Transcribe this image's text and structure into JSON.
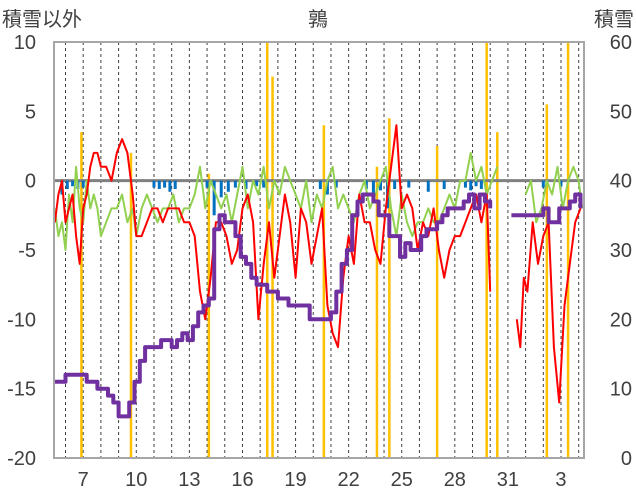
{
  "chart_data": {
    "type": "line",
    "title": "鶉",
    "ylabel_left": "積雪以外",
    "ylabel_right": "積雪",
    "x_ticks": [
      "7",
      "10",
      "13",
      "16",
      "19",
      "22",
      "25",
      "28",
      "31",
      "3"
    ],
    "x_tick_positions": [
      7,
      10,
      13,
      16,
      19,
      22,
      25,
      28,
      31,
      34
    ],
    "xlim": [
      5.35,
      35.3
    ],
    "y_left_ticks": [
      "10",
      "5",
      "0",
      "-5",
      "-10",
      "-15",
      "-20"
    ],
    "y_left_tick_values": [
      10,
      5,
      0,
      -5,
      -10,
      -15,
      -20
    ],
    "ylim_left": [
      -20,
      10
    ],
    "y_right_ticks": [
      "60",
      "50",
      "40",
      "30",
      "20",
      "10",
      "0"
    ],
    "y_right_tick_values": [
      60,
      50,
      40,
      30,
      20,
      10,
      0
    ],
    "ylim_right": [
      0,
      60
    ],
    "grid": "vertical-dashed",
    "zero_line": 0,
    "colors": {
      "temperature": "#ff0000",
      "wind": "#92d050",
      "sunshine": "#ffc000",
      "precipitation": "#0070c0",
      "snow_depth": "#7030a0",
      "zero_line": "#808080",
      "frame": "#a6a6a6",
      "grid": "#404040"
    },
    "series": [
      {
        "key": "temperature",
        "axis": "left",
        "style": "line",
        "x": [
          5.4,
          5.6,
          5.8,
          6.0,
          6.2,
          6.4,
          6.6,
          6.8,
          7.0,
          7.2,
          7.4,
          7.6,
          7.8,
          8.0,
          8.3,
          8.6,
          8.9,
          9.2,
          9.5,
          9.8,
          10.0,
          10.3,
          10.6,
          10.9,
          11.2,
          11.5,
          11.8,
          12.1,
          12.4,
          12.7,
          13.0,
          13.3,
          13.6,
          13.9,
          14.2,
          14.5,
          14.8,
          15.1,
          15.4,
          15.7,
          16.0,
          16.3,
          16.6,
          16.9,
          17.2,
          17.5,
          17.8,
          18.1,
          18.4,
          18.7,
          19.0,
          19.3,
          19.6,
          19.9,
          20.2,
          20.5,
          20.8,
          21.1,
          21.4,
          21.7,
          22.0,
          22.3,
          22.6,
          22.9,
          23.2,
          23.5,
          23.8,
          24.1,
          24.4,
          24.7,
          25.0,
          25.3,
          25.6,
          25.9,
          26.2,
          26.5,
          26.8,
          27.1,
          27.4,
          27.7,
          28.0,
          28.3,
          28.6,
          28.9,
          29.2,
          29.5,
          29.8,
          30.0,
          null,
          31.5,
          31.7,
          31.9,
          32.1,
          32.4,
          32.7,
          33.0,
          33.3,
          33.6,
          33.9,
          34.2,
          34.5,
          34.8,
          35.1
        ],
        "y": [
          -3,
          -1,
          0,
          -3,
          -2,
          -1,
          -4,
          -6,
          -2,
          -1,
          1,
          2,
          2,
          1,
          1,
          0,
          2,
          3,
          2,
          -1,
          -4,
          -4,
          -3,
          -2,
          -2,
          -3,
          -2,
          -2,
          -2,
          -3,
          -3,
          -4,
          -8,
          -10,
          -7,
          -3,
          -3,
          -4,
          -6,
          -5,
          -2,
          -1,
          -3,
          -10,
          -6,
          -3,
          -7,
          -4,
          -1,
          -3,
          -7,
          -2,
          -3,
          -6,
          -4,
          -2,
          -9,
          -11,
          -12,
          -7,
          -4,
          -6,
          -1,
          -3,
          -3,
          -5,
          -6,
          -2,
          1,
          4,
          -2,
          -1,
          -2,
          -5,
          -3,
          -4,
          -2,
          -5,
          -7,
          -5,
          -4,
          -4,
          -3,
          -2,
          -1,
          -3,
          -1,
          -8,
          null,
          -10,
          -12,
          -7,
          -8,
          -3,
          -6,
          -4,
          -3,
          -12,
          -16,
          -9,
          -6,
          -3,
          -2
        ]
      },
      {
        "key": "wind",
        "axis": "left",
        "style": "line",
        "x": [
          5.4,
          5.6,
          5.8,
          6.0,
          6.2,
          6.4,
          6.6,
          6.8,
          7.0,
          7.2,
          7.4,
          7.6,
          7.8,
          8.0,
          8.3,
          8.6,
          8.9,
          9.2,
          9.5,
          9.8,
          10.0,
          10.3,
          10.6,
          10.9,
          11.2,
          11.5,
          11.8,
          12.1,
          12.4,
          12.7,
          13.0,
          13.3,
          13.6,
          13.9,
          14.2,
          14.5,
          14.8,
          15.1,
          15.4,
          15.7,
          16.0,
          16.3,
          16.6,
          16.9,
          17.2,
          17.5,
          17.8,
          18.1,
          18.4,
          18.7,
          19.0,
          19.3,
          19.6,
          19.9,
          20.2,
          20.5,
          20.8,
          21.1,
          21.4,
          21.7,
          22.0,
          22.3,
          22.6,
          22.9,
          23.2,
          23.5,
          23.8,
          24.1,
          24.4,
          24.7,
          25.0,
          25.3,
          25.6,
          25.9,
          26.2,
          26.5,
          26.8,
          27.1,
          27.4,
          27.7,
          28.0,
          28.3,
          28.6,
          28.9,
          29.2,
          29.5,
          29.8,
          30.1,
          30.4,
          null,
          32.0,
          32.3,
          32.6,
          32.9,
          33.2,
          33.5,
          33.8,
          34.1,
          34.4,
          34.7,
          35.0,
          35.2
        ],
        "y": [
          -2,
          -4,
          -3,
          -5,
          -1,
          -3,
          1,
          -2,
          -3,
          0,
          -2,
          -1,
          -2,
          -4,
          -3,
          -2,
          -2,
          -1,
          -3,
          -2,
          -4,
          -2,
          -1,
          -2,
          -3,
          -2,
          -2,
          -1,
          -3,
          -2,
          -2,
          -1,
          1,
          -2,
          0,
          -1,
          -2,
          -1,
          -3,
          -1,
          1,
          -2,
          0,
          -1,
          1,
          -2,
          0,
          -1,
          1,
          0,
          -1,
          -2,
          0,
          -3,
          -1,
          -2,
          0,
          1,
          -2,
          -1,
          -2,
          -3,
          -1,
          0,
          -2,
          -1,
          0,
          1,
          -2,
          -4,
          -1,
          -3,
          -4,
          -3,
          -3,
          -2,
          -3,
          -3,
          -2,
          -1,
          -2,
          0,
          0,
          2,
          0,
          1,
          -1,
          0,
          1,
          null,
          -1,
          0,
          -3,
          -2,
          0,
          -1,
          1,
          -2,
          0,
          1,
          0,
          -2
        ]
      },
      {
        "key": "snow_depth",
        "axis": "right",
        "style": "step",
        "x": [
          5.4,
          5.7,
          6.0,
          6.3,
          6.6,
          6.9,
          7.2,
          7.5,
          7.8,
          8.1,
          8.4,
          8.7,
          9.0,
          9.3,
          9.6,
          9.9,
          10.2,
          10.5,
          10.8,
          11.1,
          11.4,
          11.7,
          12.0,
          12.3,
          12.6,
          12.9,
          13.2,
          13.5,
          13.8,
          14.1,
          14.4,
          14.7,
          15.0,
          15.3,
          15.6,
          15.9,
          16.2,
          16.5,
          16.8,
          17.1,
          17.4,
          17.7,
          18.0,
          18.3,
          18.6,
          18.9,
          19.2,
          19.5,
          19.8,
          20.1,
          20.4,
          20.7,
          21.0,
          21.3,
          21.6,
          21.9,
          22.2,
          22.5,
          22.8,
          23.1,
          23.4,
          23.7,
          24.0,
          24.3,
          24.6,
          24.9,
          25.2,
          25.5,
          25.8,
          26.1,
          26.4,
          26.7,
          27.0,
          27.3,
          27.6,
          27.9,
          28.2,
          28.5,
          28.8,
          29.1,
          29.4,
          29.7,
          30.0,
          null,
          31.2,
          31.5,
          31.8,
          32.1,
          32.4,
          32.7,
          33.0,
          33.3,
          33.6,
          33.9,
          34.2,
          34.5,
          34.8,
          35.1
        ],
        "y": [
          11,
          11,
          12,
          12,
          12,
          12,
          11,
          11,
          10,
          10,
          9,
          8,
          6,
          6,
          8,
          11,
          14,
          16,
          16,
          16,
          17,
          17,
          16,
          17,
          18,
          17,
          19,
          21,
          22,
          23,
          33,
          35,
          34,
          34,
          32,
          29,
          28,
          26,
          25,
          25,
          24,
          24,
          23,
          23,
          22,
          22,
          22,
          22,
          20,
          20,
          20,
          20,
          21,
          24,
          28,
          30,
          35,
          37,
          38,
          38,
          37,
          35,
          35,
          32,
          32,
          29,
          31,
          30,
          30,
          32,
          33,
          33,
          34,
          35,
          36,
          36,
          36,
          37,
          38,
          36,
          38,
          37,
          36,
          null,
          35,
          35,
          35,
          35,
          35,
          35,
          36,
          34,
          34,
          36,
          36,
          37,
          38,
          36
        ]
      },
      {
        "key": "sunshine",
        "axis": "right",
        "style": "bars",
        "x": [
          6.9,
          9.7,
          14.1,
          17.4,
          17.7,
          20.6,
          23.6,
          24.3,
          27.0,
          29.8,
          30.4,
          33.2,
          34.4
        ],
        "y": [
          47,
          44,
          41,
          60,
          55,
          48,
          42,
          49,
          45,
          60,
          47,
          51,
          60
        ]
      },
      {
        "key": "precipitation",
        "axis": "left",
        "style": "bars-down",
        "x": [
          5.8,
          6.1,
          6.4,
          6.7,
          7.0,
          11.0,
          11.3,
          11.6,
          11.9,
          12.2,
          14.0,
          14.4,
          14.8,
          15.2,
          15.6,
          16.2,
          16.8,
          17.2,
          20.4,
          20.8,
          21.3,
          23.0,
          23.4,
          23.8,
          24.2,
          24.6,
          25.4,
          26.5,
          27.4,
          28.6,
          28.9,
          29.2,
          29.5,
          33.0,
          34.0
        ],
        "y": [
          -1,
          -0.6,
          -0.4,
          -0.6,
          -0.5,
          -0.5,
          -0.6,
          -0.5,
          -0.8,
          -0.6,
          -0.5,
          -2.5,
          -1.2,
          -0.8,
          -0.5,
          -0.6,
          -0.4,
          -0.5,
          -0.6,
          -1,
          -0.5,
          -0.6,
          -1.2,
          -0.7,
          -2,
          -0.6,
          -0.5,
          -0.8,
          -0.6,
          -0.5,
          -0.7,
          -0.4,
          -0.6,
          -0.5,
          -0.4
        ]
      }
    ]
  }
}
